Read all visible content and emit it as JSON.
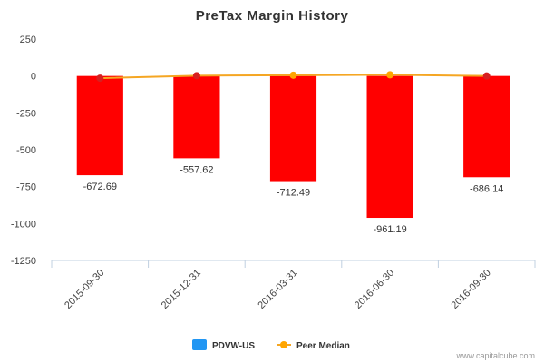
{
  "chart_data": {
    "type": "bar",
    "title": "PreTax Margin History",
    "categories": [
      "2015-09-30",
      "2015-12-31",
      "2016-03-31",
      "2016-06-30",
      "2016-09-30"
    ],
    "series": [
      {
        "name": "PDVW-US",
        "type": "bar",
        "color": "#ff0000",
        "legend_color": "#2196f3",
        "values": [
          -672.69,
          -557.62,
          -712.49,
          -961.19,
          -686.14
        ],
        "labels": [
          "-672.69",
          "-557.62",
          "-712.49",
          "-961.19",
          "-686.14"
        ]
      },
      {
        "name": "Peer Median",
        "type": "line",
        "color": "#f5a623",
        "marker_color": "#ffa500",
        "values": [
          -15,
          2,
          5,
          8,
          0
        ]
      }
    ],
    "y_ticks": [
      250,
      0,
      -250,
      -500,
      -750,
      -1000,
      -1250
    ],
    "y_tick_labels": [
      "250",
      "0",
      "-250",
      "-500",
      "-750",
      "-1000",
      "-1250"
    ],
    "ylim": [
      -1250,
      250
    ],
    "xlabel": "",
    "ylabel": "",
    "legend_position": "bottom-center",
    "grid": false
  },
  "credit": "www.capitalcube.com"
}
